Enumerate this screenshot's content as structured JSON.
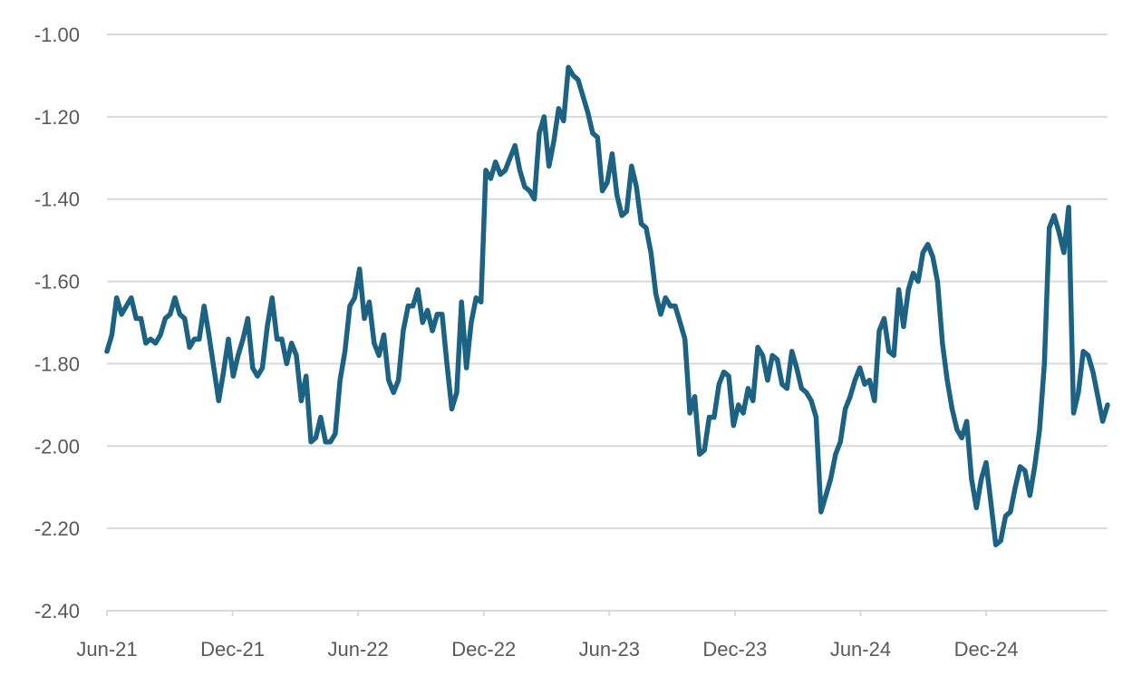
{
  "chart_data": {
    "type": "line",
    "title": "",
    "xlabel": "",
    "ylabel": "",
    "ylim": [
      -2.4,
      -1.0
    ],
    "y_ticks": [
      "-1.00",
      "-1.20",
      "-1.40",
      "-1.60",
      "-1.80",
      "-2.00",
      "-2.20",
      "-2.40"
    ],
    "y_tick_values": [
      -1.0,
      -1.2,
      -1.4,
      -1.6,
      -1.8,
      -2.0,
      -2.2,
      -2.4
    ],
    "x_ticks": [
      "Jun-21",
      "Dec-21",
      "Jun-22",
      "Dec-22",
      "Jun-23",
      "Dec-23",
      "Jun-24",
      "Dec-24"
    ],
    "x_tick_months": [
      0,
      6,
      12,
      18,
      24,
      30,
      36,
      42
    ],
    "x_range_months": [
      0,
      47.8
    ],
    "x_note": "values evenly spaced from Jun-21 to end of range",
    "grid": true,
    "legend": "none",
    "series": [
      {
        "name": "series",
        "color": "#1b6283",
        "values": [
          -1.77,
          -1.73,
          -1.64,
          -1.68,
          -1.66,
          -1.64,
          -1.69,
          -1.69,
          -1.75,
          -1.74,
          -1.75,
          -1.73,
          -1.69,
          -1.68,
          -1.64,
          -1.68,
          -1.69,
          -1.76,
          -1.74,
          -1.74,
          -1.66,
          -1.73,
          -1.81,
          -1.89,
          -1.82,
          -1.74,
          -1.83,
          -1.78,
          -1.74,
          -1.69,
          -1.81,
          -1.83,
          -1.81,
          -1.71,
          -1.64,
          -1.74,
          -1.74,
          -1.8,
          -1.75,
          -1.78,
          -1.89,
          -1.83,
          -1.99,
          -1.98,
          -1.93,
          -1.99,
          -1.99,
          -1.97,
          -1.84,
          -1.77,
          -1.66,
          -1.64,
          -1.57,
          -1.69,
          -1.65,
          -1.75,
          -1.78,
          -1.73,
          -1.84,
          -1.87,
          -1.84,
          -1.72,
          -1.66,
          -1.66,
          -1.62,
          -1.7,
          -1.67,
          -1.72,
          -1.68,
          -1.68,
          -1.8,
          -1.91,
          -1.87,
          -1.65,
          -1.81,
          -1.7,
          -1.64,
          -1.65,
          -1.33,
          -1.35,
          -1.31,
          -1.34,
          -1.33,
          -1.3,
          -1.27,
          -1.33,
          -1.37,
          -1.38,
          -1.4,
          -1.24,
          -1.2,
          -1.32,
          -1.26,
          -1.18,
          -1.21,
          -1.08,
          -1.1,
          -1.11,
          -1.15,
          -1.19,
          -1.24,
          -1.25,
          -1.38,
          -1.36,
          -1.29,
          -1.39,
          -1.44,
          -1.43,
          -1.32,
          -1.37,
          -1.46,
          -1.47,
          -1.53,
          -1.63,
          -1.68,
          -1.64,
          -1.66,
          -1.66,
          -1.7,
          -1.74,
          -1.92,
          -1.88,
          -2.02,
          -2.01,
          -1.93,
          -1.93,
          -1.85,
          -1.82,
          -1.83,
          -1.95,
          -1.9,
          -1.92,
          -1.86,
          -1.89,
          -1.76,
          -1.78,
          -1.84,
          -1.78,
          -1.79,
          -1.85,
          -1.86,
          -1.77,
          -1.81,
          -1.86,
          -1.87,
          -1.89,
          -1.93,
          -2.16,
          -2.12,
          -2.08,
          -2.02,
          -1.99,
          -1.91,
          -1.88,
          -1.84,
          -1.81,
          -1.85,
          -1.84,
          -1.89,
          -1.72,
          -1.69,
          -1.77,
          -1.78,
          -1.62,
          -1.71,
          -1.62,
          -1.58,
          -1.6,
          -1.53,
          -1.51,
          -1.54,
          -1.6,
          -1.75,
          -1.84,
          -1.91,
          -1.96,
          -1.98,
          -1.94,
          -2.08,
          -2.15,
          -2.08,
          -2.04,
          -2.14,
          -2.24,
          -2.23,
          -2.17,
          -2.16,
          -2.1,
          -2.05,
          -2.06,
          -2.12,
          -2.05,
          -1.96,
          -1.8,
          -1.47,
          -1.44,
          -1.48,
          -1.53,
          -1.42,
          -1.92,
          -1.87,
          -1.77,
          -1.78,
          -1.82,
          -1.88,
          -1.94,
          -1.9
        ]
      }
    ]
  }
}
